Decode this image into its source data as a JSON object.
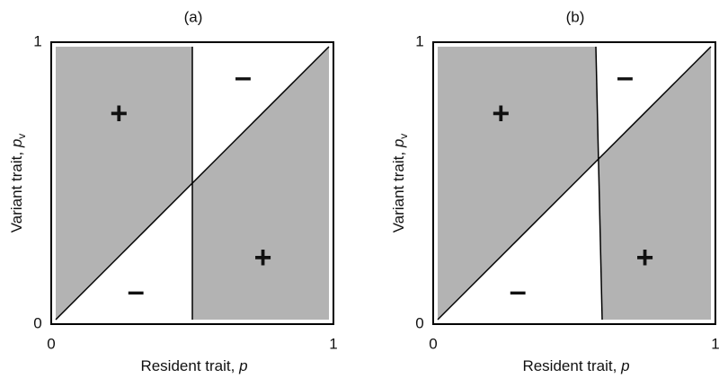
{
  "panels": [
    {
      "label": "(a)",
      "x_label": {
        "text": "Resident trait, ",
        "var": "p"
      },
      "y_label": {
        "text": "Variant trait, ",
        "var": "p",
        "sub": "v"
      },
      "x_ticks": [
        "0",
        "1"
      ],
      "y_ticks": [
        "0",
        "1"
      ],
      "signs": [
        "+",
        "–",
        "–",
        "+"
      ]
    },
    {
      "label": "(b)",
      "x_label": {
        "text": "Resident trait, ",
        "var": "p"
      },
      "y_label": {
        "text": "Variant trait, ",
        "var": "p",
        "sub": "v"
      },
      "x_ticks": [
        "0",
        "1"
      ],
      "y_ticks": [
        "0",
        "1"
      ],
      "signs": [
        "+",
        "–",
        "–",
        "+"
      ]
    }
  ]
}
